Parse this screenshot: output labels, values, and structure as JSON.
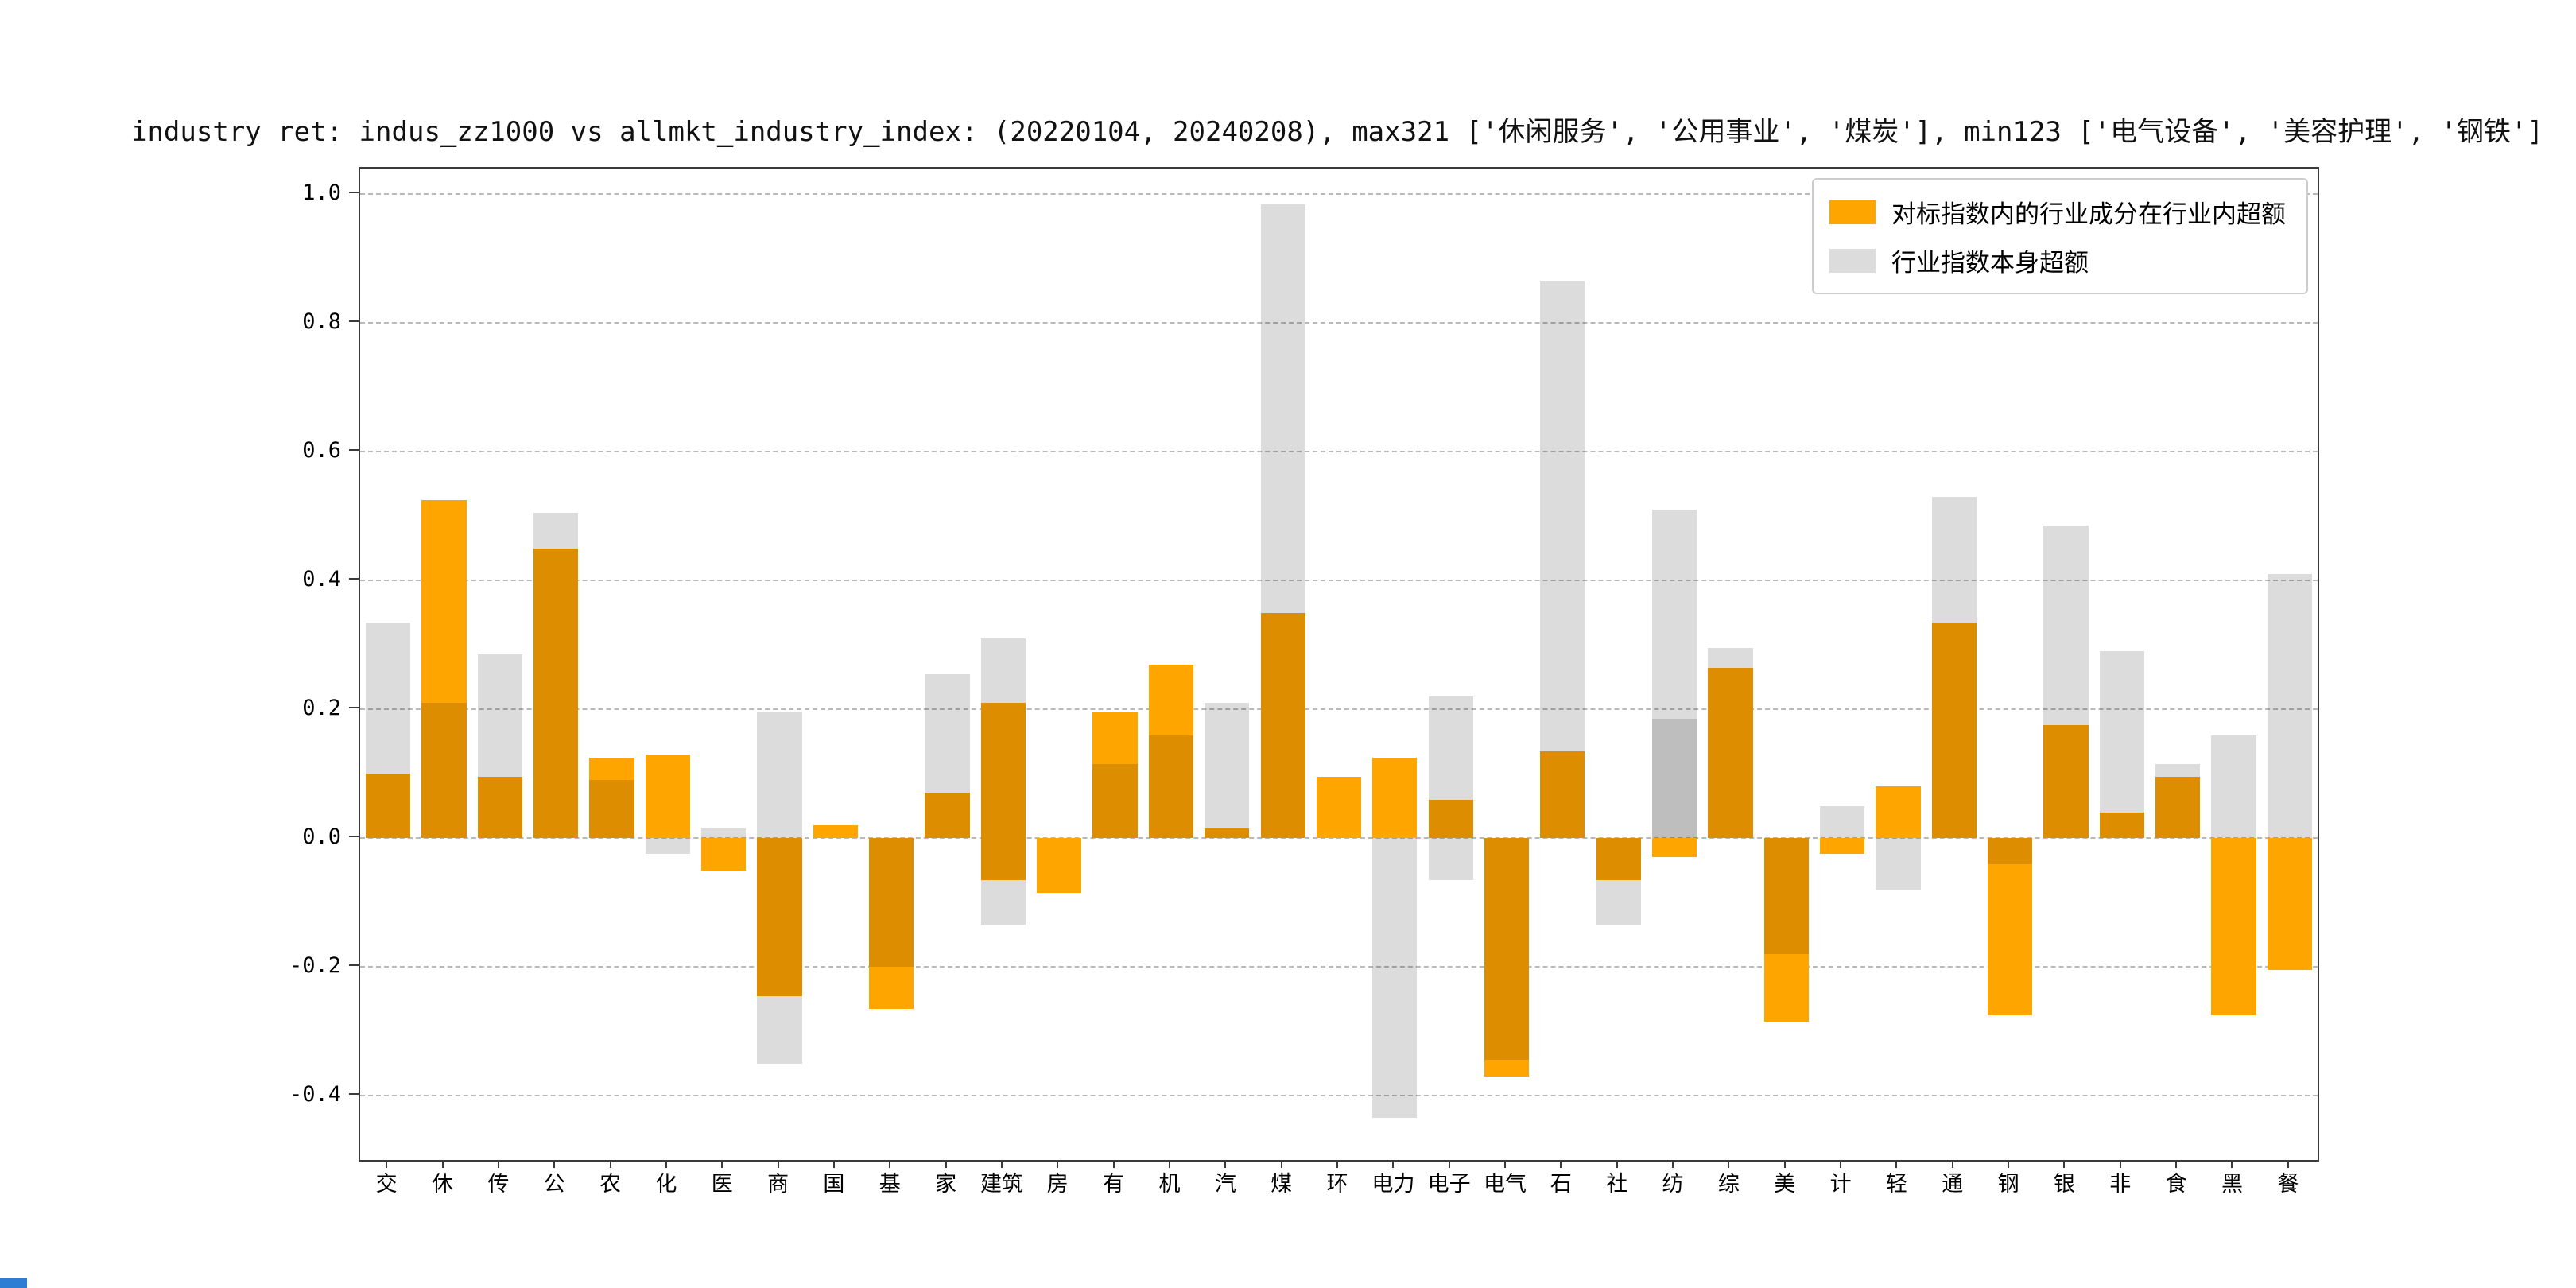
{
  "figure": {
    "background": "#ffffff",
    "artifact_color": "#2d7dd2"
  },
  "chart_data": {
    "type": "bar",
    "title": "industry ret: indus_zz1000 vs allmkt_industry_index: (20220104, 20240208), max321 ['休闲服务', '公用事业', '煤炭'], min123 ['电气设备', '美容护理', '钢铁']",
    "legend": [
      {
        "name": "component-excess",
        "label": "对标指数内的行业成分在行业内超额",
        "color": "#FFA500"
      },
      {
        "name": "index-excess",
        "label": "行业指数本身超额",
        "color": "#DCDCDC"
      }
    ],
    "legend_position": "upper-right",
    "grid": "dashed-horizontal",
    "ylim": [
      -0.5,
      1.04
    ],
    "yticks": [
      1.0,
      0.8,
      0.6,
      0.4,
      0.2,
      0.0,
      -0.2,
      -0.4
    ],
    "categories": [
      "交",
      "休",
      "传",
      "公",
      "农",
      "化",
      "医",
      "商",
      "国",
      "基",
      "家",
      "建筑",
      "房",
      "有",
      "机",
      "汽",
      "煤",
      "环",
      "电力",
      "电子",
      "电气",
      "石",
      "社",
      "纺",
      "综",
      "美",
      "计",
      "轻",
      "通",
      "钢",
      "银",
      "非",
      "食",
      "黑",
      "餐"
    ],
    "series": [
      {
        "name": "对标指数内的行业成分在行业内超额",
        "key": "orange",
        "color": "#FFA500",
        "ranges": [
          [
            0,
            0.1
          ],
          [
            0,
            0.525
          ],
          [
            0,
            0.095
          ],
          [
            0,
            0.45
          ],
          [
            0,
            0.125
          ],
          [
            0,
            0.13
          ],
          [
            -0.05,
            0
          ],
          [
            -0.245,
            0
          ],
          [
            0,
            0.02
          ],
          [
            -0.265,
            0
          ],
          [
            0,
            0.07
          ],
          [
            -0.065,
            0.21
          ],
          [
            -0.085,
            0
          ],
          [
            0,
            0.195
          ],
          [
            0,
            0.27
          ],
          [
            0,
            0.015
          ],
          [
            0,
            0.35
          ],
          [
            0,
            0.095
          ],
          [
            0,
            0.125
          ],
          [
            0,
            0.06
          ],
          [
            -0.37,
            0
          ],
          [
            0,
            0.135
          ],
          [
            -0.065,
            0
          ],
          [
            -0.03,
            0
          ],
          [
            0,
            0.265
          ],
          [
            -0.285,
            0
          ],
          [
            -0.025,
            0
          ],
          [
            0,
            0.08
          ],
          [
            0,
            0.335
          ],
          [
            -0.275,
            0
          ],
          [
            0,
            0.175
          ],
          [
            0,
            0.04
          ],
          [
            0,
            0.095
          ],
          [
            -0.275,
            0
          ],
          [
            -0.205,
            0
          ]
        ]
      },
      {
        "name": "行业指数本身超额",
        "key": "gray",
        "color": "#DCDCDC",
        "ranges": [
          [
            0,
            0.335
          ],
          [
            0,
            0.21
          ],
          [
            0,
            0.285
          ],
          [
            0,
            0.505
          ],
          [
            0,
            0.09
          ],
          [
            -0.025,
            0
          ],
          [
            0,
            0.015
          ],
          [
            -0.35,
            0.197
          ],
          null,
          [
            -0.2,
            0
          ],
          [
            0,
            0.255
          ],
          [
            -0.135,
            0.31
          ],
          null,
          [
            0,
            0.115
          ],
          [
            0,
            0.16
          ],
          [
            0,
            0.21
          ],
          [
            0,
            0.985
          ],
          null,
          [
            -0.435,
            0
          ],
          [
            -0.065,
            0.22
          ],
          [
            -0.345,
            0
          ],
          [
            0,
            0.865
          ],
          [
            -0.135,
            0
          ],
          [
            0,
            0.51
          ],
          [
            0,
            0.295
          ],
          [
            -0.18,
            0
          ],
          [
            0,
            0.05
          ],
          [
            -0.08,
            0
          ],
          [
            0,
            0.53
          ],
          [
            -0.04,
            0
          ],
          [
            0,
            0.485
          ],
          [
            0,
            0.29
          ],
          [
            0,
            0.115
          ],
          [
            0,
            0.16
          ],
          [
            0,
            0.41
          ]
        ]
      },
      {
        "name": "行业指数本身超额(重叠)",
        "key": "gray2",
        "color": "#DCDCDC",
        "ranges": [
          null,
          null,
          null,
          null,
          null,
          null,
          null,
          null,
          null,
          null,
          null,
          null,
          null,
          null,
          null,
          null,
          null,
          null,
          null,
          null,
          null,
          null,
          null,
          [
            0,
            0.185
          ],
          null,
          null,
          null,
          null,
          null,
          null,
          null,
          null,
          null,
          null,
          null
        ]
      }
    ]
  }
}
